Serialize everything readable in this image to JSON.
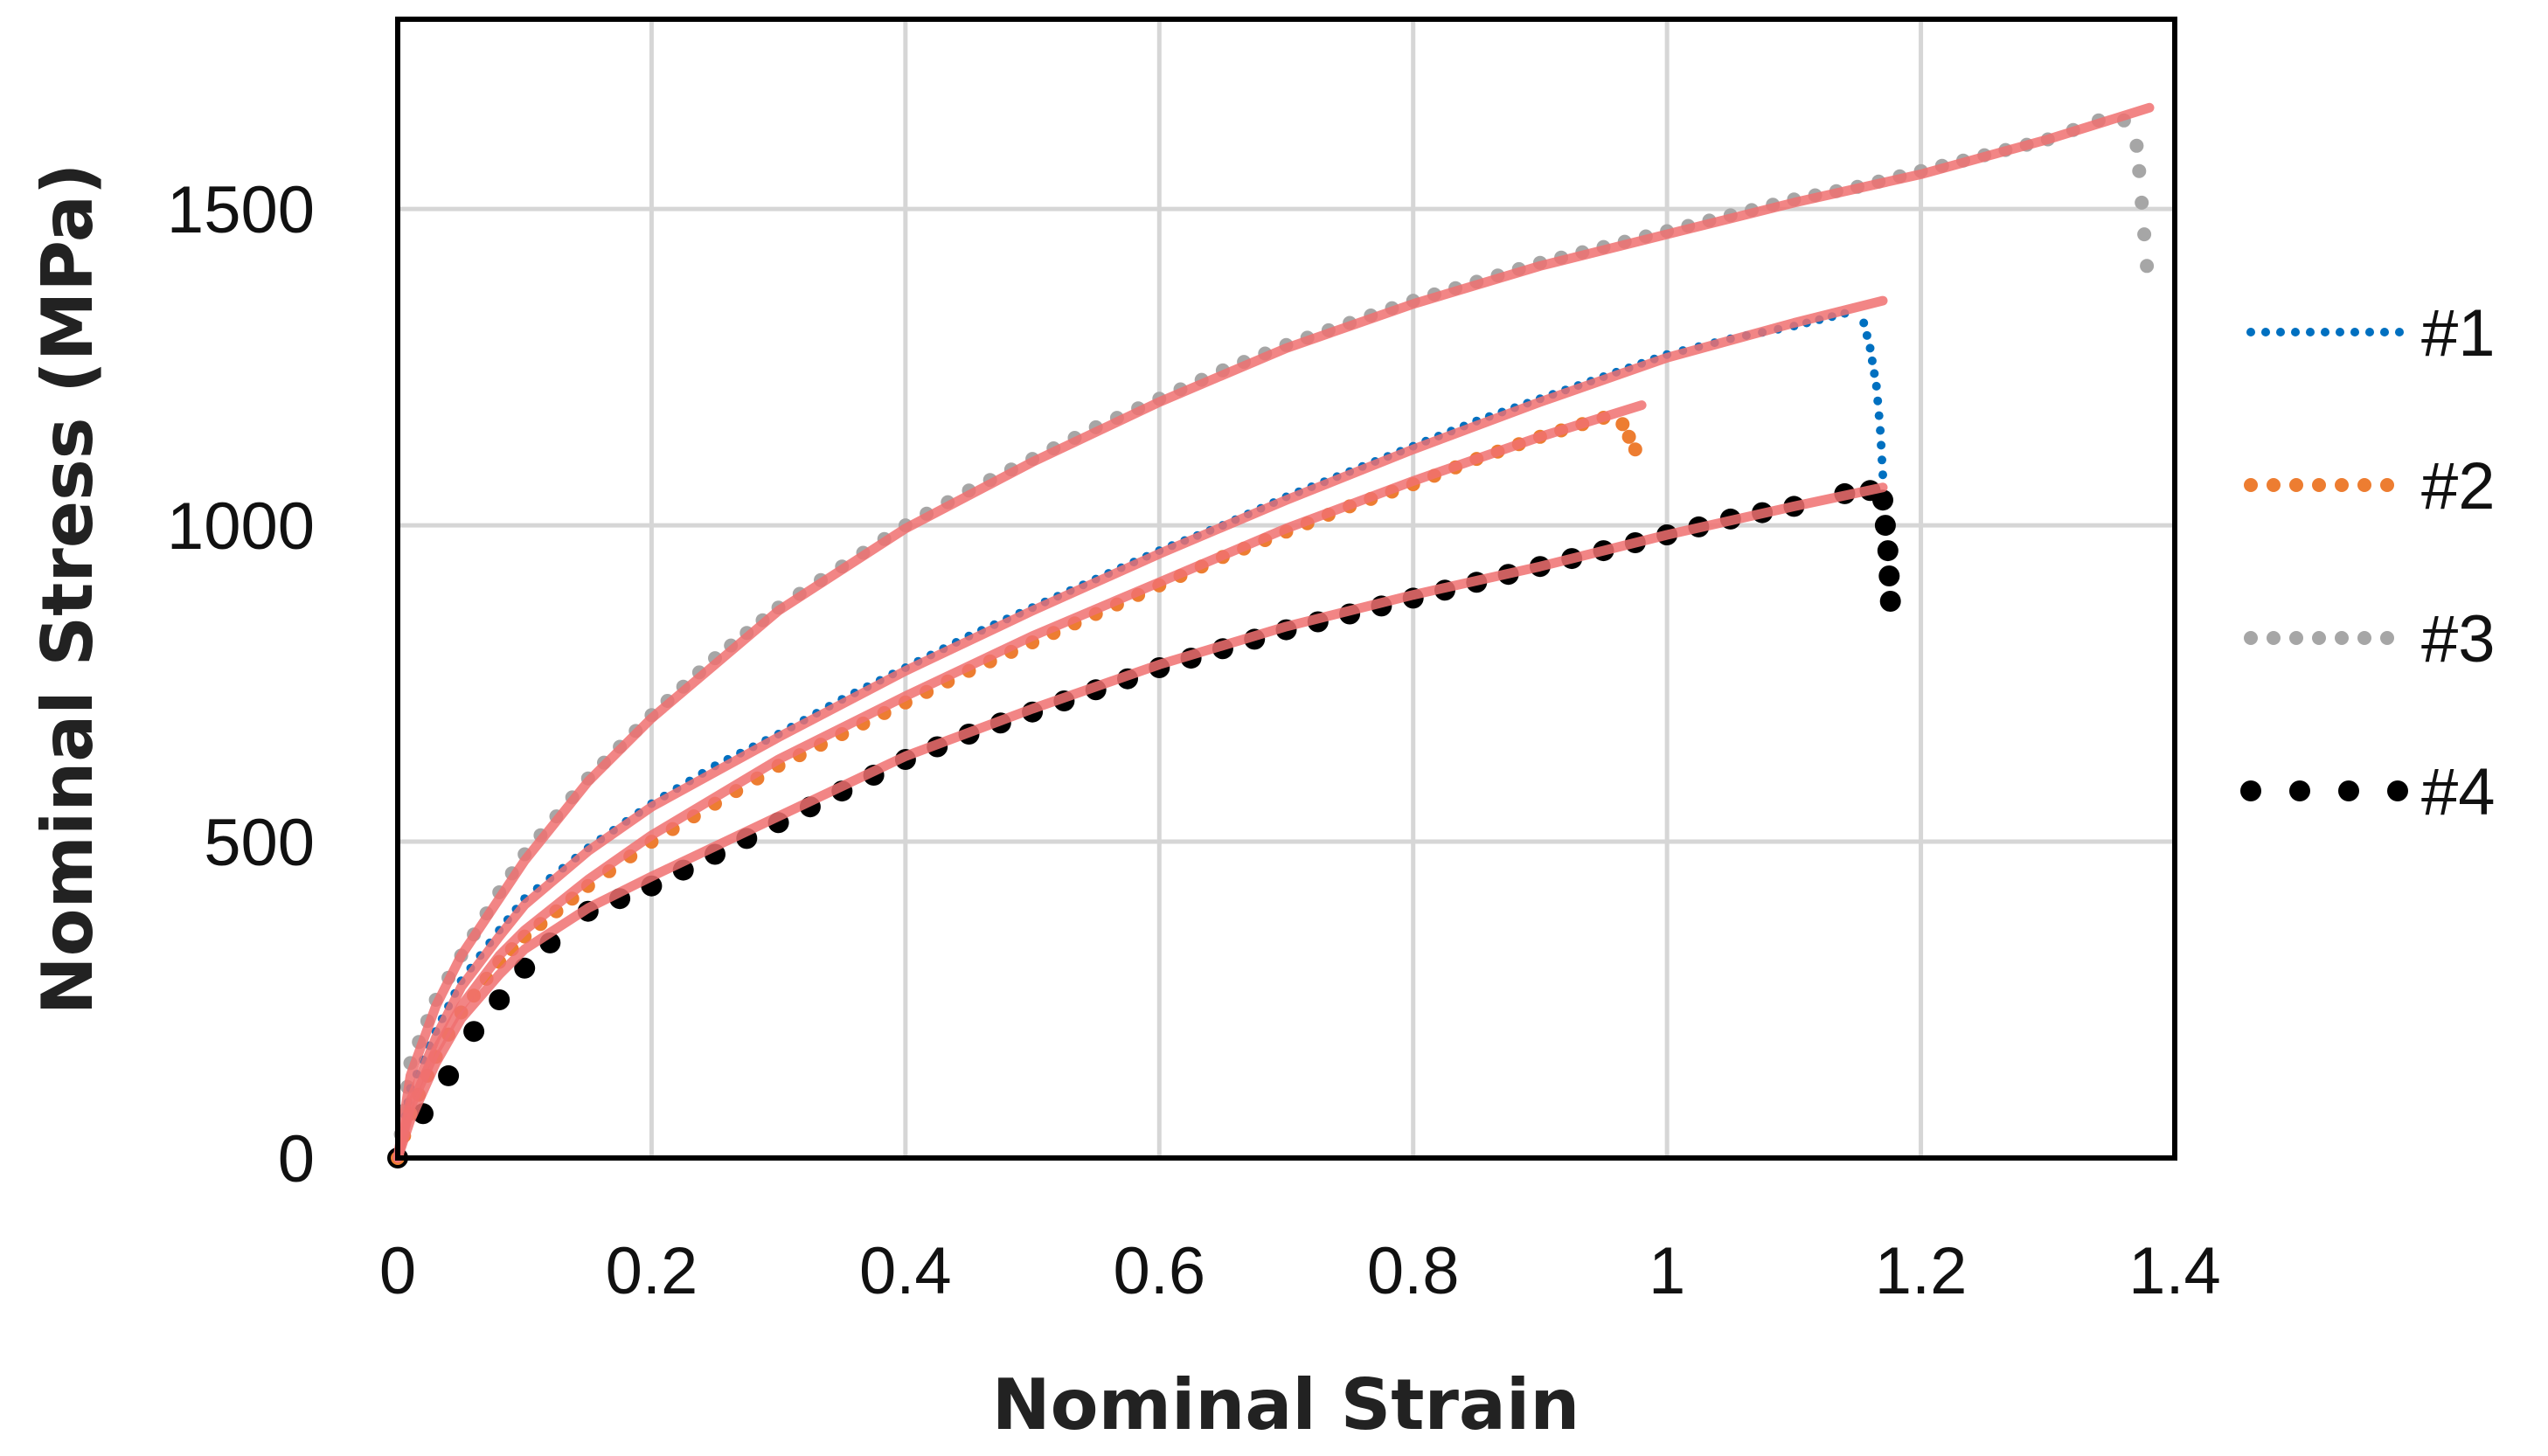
{
  "chart_data": {
    "type": "scatter",
    "title": "",
    "xlabel": "Nominal Strain",
    "ylabel": "Nominal Stress (MPa)",
    "xlim": [
      0,
      1.4
    ],
    "ylim": [
      0,
      1800
    ],
    "xticks": [
      0,
      0.2,
      0.4,
      0.6,
      0.8,
      1.0,
      1.2,
      1.4
    ],
    "xtick_labels": [
      "0",
      "0.2",
      "0.4",
      "0.6",
      "0.8",
      "1",
      "1.2",
      "1.4"
    ],
    "yticks": [
      0,
      500,
      1000,
      1500
    ],
    "ytick_labels": [
      "0",
      "500",
      "1000",
      "1500"
    ],
    "grid": true,
    "legend_position": "right",
    "series": [
      {
        "name": "#1",
        "color": "#0070C0",
        "marker": "small-dot",
        "points": [
          [
            0,
            0
          ],
          [
            0.01,
            110
          ],
          [
            0.03,
            200
          ],
          [
            0.05,
            280
          ],
          [
            0.08,
            360
          ],
          [
            0.1,
            410
          ],
          [
            0.15,
            490
          ],
          [
            0.2,
            560
          ],
          [
            0.25,
            620
          ],
          [
            0.3,
            670
          ],
          [
            0.35,
            725
          ],
          [
            0.4,
            775
          ],
          [
            0.45,
            825
          ],
          [
            0.5,
            870
          ],
          [
            0.55,
            915
          ],
          [
            0.6,
            960
          ],
          [
            0.65,
            1000
          ],
          [
            0.7,
            1045
          ],
          [
            0.75,
            1085
          ],
          [
            0.8,
            1125
          ],
          [
            0.85,
            1165
          ],
          [
            0.9,
            1200
          ],
          [
            0.95,
            1235
          ],
          [
            1.0,
            1270
          ],
          [
            1.05,
            1295
          ],
          [
            1.1,
            1315
          ],
          [
            1.14,
            1335
          ],
          [
            1.155,
            1320
          ],
          [
            1.16,
            1280
          ],
          [
            1.165,
            1220
          ],
          [
            1.168,
            1150
          ],
          [
            1.17,
            1080
          ]
        ]
      },
      {
        "name": "#2",
        "color": "#ED7D31",
        "marker": "dot",
        "points": [
          [
            0,
            0
          ],
          [
            0.01,
            70
          ],
          [
            0.03,
            160
          ],
          [
            0.05,
            230
          ],
          [
            0.08,
            310
          ],
          [
            0.1,
            350
          ],
          [
            0.15,
            430
          ],
          [
            0.2,
            500
          ],
          [
            0.25,
            560
          ],
          [
            0.3,
            620
          ],
          [
            0.35,
            670
          ],
          [
            0.4,
            720
          ],
          [
            0.45,
            770
          ],
          [
            0.5,
            815
          ],
          [
            0.55,
            860
          ],
          [
            0.6,
            905
          ],
          [
            0.65,
            950
          ],
          [
            0.7,
            990
          ],
          [
            0.75,
            1030
          ],
          [
            0.8,
            1065
          ],
          [
            0.85,
            1105
          ],
          [
            0.9,
            1140
          ],
          [
            0.95,
            1170
          ],
          [
            0.965,
            1160
          ],
          [
            0.97,
            1140
          ],
          [
            0.975,
            1120
          ]
        ]
      },
      {
        "name": "#3",
        "color": "#A6A6A6",
        "marker": "dot",
        "points": [
          [
            0,
            0
          ],
          [
            0.01,
            150
          ],
          [
            0.03,
            250
          ],
          [
            0.05,
            320
          ],
          [
            0.08,
            420
          ],
          [
            0.1,
            480
          ],
          [
            0.15,
            600
          ],
          [
            0.2,
            700
          ],
          [
            0.25,
            790
          ],
          [
            0.3,
            870
          ],
          [
            0.35,
            935
          ],
          [
            0.4,
            1000
          ],
          [
            0.45,
            1055
          ],
          [
            0.5,
            1105
          ],
          [
            0.55,
            1155
          ],
          [
            0.6,
            1200
          ],
          [
            0.65,
            1245
          ],
          [
            0.7,
            1285
          ],
          [
            0.75,
            1320
          ],
          [
            0.8,
            1355
          ],
          [
            0.85,
            1385
          ],
          [
            0.9,
            1415
          ],
          [
            0.95,
            1440
          ],
          [
            1.0,
            1465
          ],
          [
            1.05,
            1490
          ],
          [
            1.1,
            1515
          ],
          [
            1.15,
            1535
          ],
          [
            1.2,
            1560
          ],
          [
            1.25,
            1585
          ],
          [
            1.3,
            1610
          ],
          [
            1.34,
            1640
          ],
          [
            1.36,
            1640
          ],
          [
            1.37,
            1600
          ],
          [
            1.372,
            1560
          ],
          [
            1.374,
            1510
          ],
          [
            1.376,
            1460
          ],
          [
            1.378,
            1410
          ]
        ]
      },
      {
        "name": "#4",
        "color": "#000000",
        "marker": "large-dot",
        "points": [
          [
            0,
            0
          ],
          [
            0.02,
            70
          ],
          [
            0.04,
            130
          ],
          [
            0.06,
            200
          ],
          [
            0.08,
            250
          ],
          [
            0.1,
            300
          ],
          [
            0.12,
            340
          ],
          [
            0.15,
            390
          ],
          [
            0.2,
            430
          ],
          [
            0.25,
            480
          ],
          [
            0.3,
            530
          ],
          [
            0.35,
            580
          ],
          [
            0.4,
            630
          ],
          [
            0.45,
            670
          ],
          [
            0.5,
            705
          ],
          [
            0.55,
            740
          ],
          [
            0.6,
            775
          ],
          [
            0.65,
            805
          ],
          [
            0.7,
            835
          ],
          [
            0.75,
            860
          ],
          [
            0.8,
            885
          ],
          [
            0.85,
            910
          ],
          [
            0.9,
            935
          ],
          [
            0.95,
            960
          ],
          [
            1.0,
            985
          ],
          [
            1.05,
            1010
          ],
          [
            1.1,
            1030
          ],
          [
            1.14,
            1050
          ],
          [
            1.16,
            1055
          ],
          [
            1.17,
            1040
          ],
          [
            1.172,
            1000
          ],
          [
            1.174,
            960
          ],
          [
            1.175,
            920
          ],
          [
            1.176,
            880
          ]
        ]
      }
    ],
    "fit_curves": [
      {
        "for": "#1",
        "color": "#F07070",
        "points": [
          [
            0,
            0
          ],
          [
            0.01,
            90
          ],
          [
            0.03,
            190
          ],
          [
            0.05,
            270
          ],
          [
            0.08,
            350
          ],
          [
            0.1,
            400
          ],
          [
            0.15,
            485
          ],
          [
            0.2,
            555
          ],
          [
            0.3,
            665
          ],
          [
            0.4,
            770
          ],
          [
            0.5,
            865
          ],
          [
            0.6,
            955
          ],
          [
            0.7,
            1040
          ],
          [
            0.8,
            1120
          ],
          [
            0.9,
            1195
          ],
          [
            1.0,
            1265
          ],
          [
            1.1,
            1320
          ],
          [
            1.17,
            1355
          ]
        ]
      },
      {
        "for": "#2",
        "color": "#F07070",
        "points": [
          [
            0,
            0
          ],
          [
            0.01,
            80
          ],
          [
            0.03,
            170
          ],
          [
            0.05,
            240
          ],
          [
            0.08,
            320
          ],
          [
            0.1,
            360
          ],
          [
            0.15,
            440
          ],
          [
            0.2,
            510
          ],
          [
            0.3,
            630
          ],
          [
            0.4,
            730
          ],
          [
            0.5,
            825
          ],
          [
            0.6,
            910
          ],
          [
            0.7,
            995
          ],
          [
            0.8,
            1070
          ],
          [
            0.9,
            1140
          ],
          [
            0.98,
            1190
          ]
        ]
      },
      {
        "for": "#3",
        "color": "#F07070",
        "points": [
          [
            0,
            0
          ],
          [
            0.01,
            130
          ],
          [
            0.03,
            240
          ],
          [
            0.05,
            320
          ],
          [
            0.08,
            410
          ],
          [
            0.1,
            470
          ],
          [
            0.15,
            595
          ],
          [
            0.2,
            695
          ],
          [
            0.3,
            865
          ],
          [
            0.4,
            995
          ],
          [
            0.5,
            1100
          ],
          [
            0.6,
            1195
          ],
          [
            0.7,
            1280
          ],
          [
            0.8,
            1350
          ],
          [
            0.9,
            1410
          ],
          [
            1.0,
            1460
          ],
          [
            1.1,
            1510
          ],
          [
            1.2,
            1555
          ],
          [
            1.3,
            1610
          ],
          [
            1.38,
            1660
          ]
        ]
      },
      {
        "for": "#4",
        "color": "#F07070",
        "points": [
          [
            0,
            0
          ],
          [
            0.01,
            60
          ],
          [
            0.03,
            150
          ],
          [
            0.05,
            220
          ],
          [
            0.08,
            290
          ],
          [
            0.1,
            330
          ],
          [
            0.15,
            395
          ],
          [
            0.2,
            445
          ],
          [
            0.3,
            540
          ],
          [
            0.4,
            635
          ],
          [
            0.5,
            710
          ],
          [
            0.6,
            780
          ],
          [
            0.7,
            840
          ],
          [
            0.8,
            890
          ],
          [
            0.9,
            935
          ],
          [
            1.0,
            985
          ],
          [
            1.1,
            1030
          ],
          [
            1.17,
            1060
          ]
        ]
      }
    ]
  }
}
